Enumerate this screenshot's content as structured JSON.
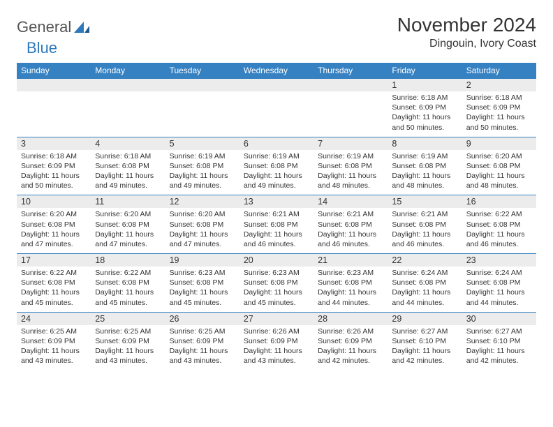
{
  "logo": {
    "text_general": "General",
    "text_blue": "Blue"
  },
  "header": {
    "month_title": "November 2024",
    "location": "Dingouin, Ivory Coast"
  },
  "colors": {
    "header_bg": "#3681c2",
    "header_text": "#ffffff",
    "num_bg": "#ececec",
    "border": "#3681c2",
    "text": "#333333",
    "logo_gray": "#555555",
    "logo_blue": "#2f79b9",
    "page_bg": "#ffffff"
  },
  "day_names": [
    "Sunday",
    "Monday",
    "Tuesday",
    "Wednesday",
    "Thursday",
    "Friday",
    "Saturday"
  ],
  "weeks": [
    {
      "nums": [
        "",
        "",
        "",
        "",
        "",
        "1",
        "2"
      ],
      "cells": [
        "",
        "",
        "",
        "",
        "",
        "Sunrise: 6:18 AM\nSunset: 6:09 PM\nDaylight: 11 hours and 50 minutes.",
        "Sunrise: 6:18 AM\nSunset: 6:09 PM\nDaylight: 11 hours and 50 minutes."
      ]
    },
    {
      "nums": [
        "3",
        "4",
        "5",
        "6",
        "7",
        "8",
        "9"
      ],
      "cells": [
        "Sunrise: 6:18 AM\nSunset: 6:09 PM\nDaylight: 11 hours and 50 minutes.",
        "Sunrise: 6:18 AM\nSunset: 6:08 PM\nDaylight: 11 hours and 49 minutes.",
        "Sunrise: 6:19 AM\nSunset: 6:08 PM\nDaylight: 11 hours and 49 minutes.",
        "Sunrise: 6:19 AM\nSunset: 6:08 PM\nDaylight: 11 hours and 49 minutes.",
        "Sunrise: 6:19 AM\nSunset: 6:08 PM\nDaylight: 11 hours and 48 minutes.",
        "Sunrise: 6:19 AM\nSunset: 6:08 PM\nDaylight: 11 hours and 48 minutes.",
        "Sunrise: 6:20 AM\nSunset: 6:08 PM\nDaylight: 11 hours and 48 minutes."
      ]
    },
    {
      "nums": [
        "10",
        "11",
        "12",
        "13",
        "14",
        "15",
        "16"
      ],
      "cells": [
        "Sunrise: 6:20 AM\nSunset: 6:08 PM\nDaylight: 11 hours and 47 minutes.",
        "Sunrise: 6:20 AM\nSunset: 6:08 PM\nDaylight: 11 hours and 47 minutes.",
        "Sunrise: 6:20 AM\nSunset: 6:08 PM\nDaylight: 11 hours and 47 minutes.",
        "Sunrise: 6:21 AM\nSunset: 6:08 PM\nDaylight: 11 hours and 46 minutes.",
        "Sunrise: 6:21 AM\nSunset: 6:08 PM\nDaylight: 11 hours and 46 minutes.",
        "Sunrise: 6:21 AM\nSunset: 6:08 PM\nDaylight: 11 hours and 46 minutes.",
        "Sunrise: 6:22 AM\nSunset: 6:08 PM\nDaylight: 11 hours and 46 minutes."
      ]
    },
    {
      "nums": [
        "17",
        "18",
        "19",
        "20",
        "21",
        "22",
        "23"
      ],
      "cells": [
        "Sunrise: 6:22 AM\nSunset: 6:08 PM\nDaylight: 11 hours and 45 minutes.",
        "Sunrise: 6:22 AM\nSunset: 6:08 PM\nDaylight: 11 hours and 45 minutes.",
        "Sunrise: 6:23 AM\nSunset: 6:08 PM\nDaylight: 11 hours and 45 minutes.",
        "Sunrise: 6:23 AM\nSunset: 6:08 PM\nDaylight: 11 hours and 45 minutes.",
        "Sunrise: 6:23 AM\nSunset: 6:08 PM\nDaylight: 11 hours and 44 minutes.",
        "Sunrise: 6:24 AM\nSunset: 6:08 PM\nDaylight: 11 hours and 44 minutes.",
        "Sunrise: 6:24 AM\nSunset: 6:08 PM\nDaylight: 11 hours and 44 minutes."
      ]
    },
    {
      "nums": [
        "24",
        "25",
        "26",
        "27",
        "28",
        "29",
        "30"
      ],
      "cells": [
        "Sunrise: 6:25 AM\nSunset: 6:09 PM\nDaylight: 11 hours and 43 minutes.",
        "Sunrise: 6:25 AM\nSunset: 6:09 PM\nDaylight: 11 hours and 43 minutes.",
        "Sunrise: 6:25 AM\nSunset: 6:09 PM\nDaylight: 11 hours and 43 minutes.",
        "Sunrise: 6:26 AM\nSunset: 6:09 PM\nDaylight: 11 hours and 43 minutes.",
        "Sunrise: 6:26 AM\nSunset: 6:09 PM\nDaylight: 11 hours and 42 minutes.",
        "Sunrise: 6:27 AM\nSunset: 6:10 PM\nDaylight: 11 hours and 42 minutes.",
        "Sunrise: 6:27 AM\nSunset: 6:10 PM\nDaylight: 11 hours and 42 minutes."
      ]
    }
  ]
}
